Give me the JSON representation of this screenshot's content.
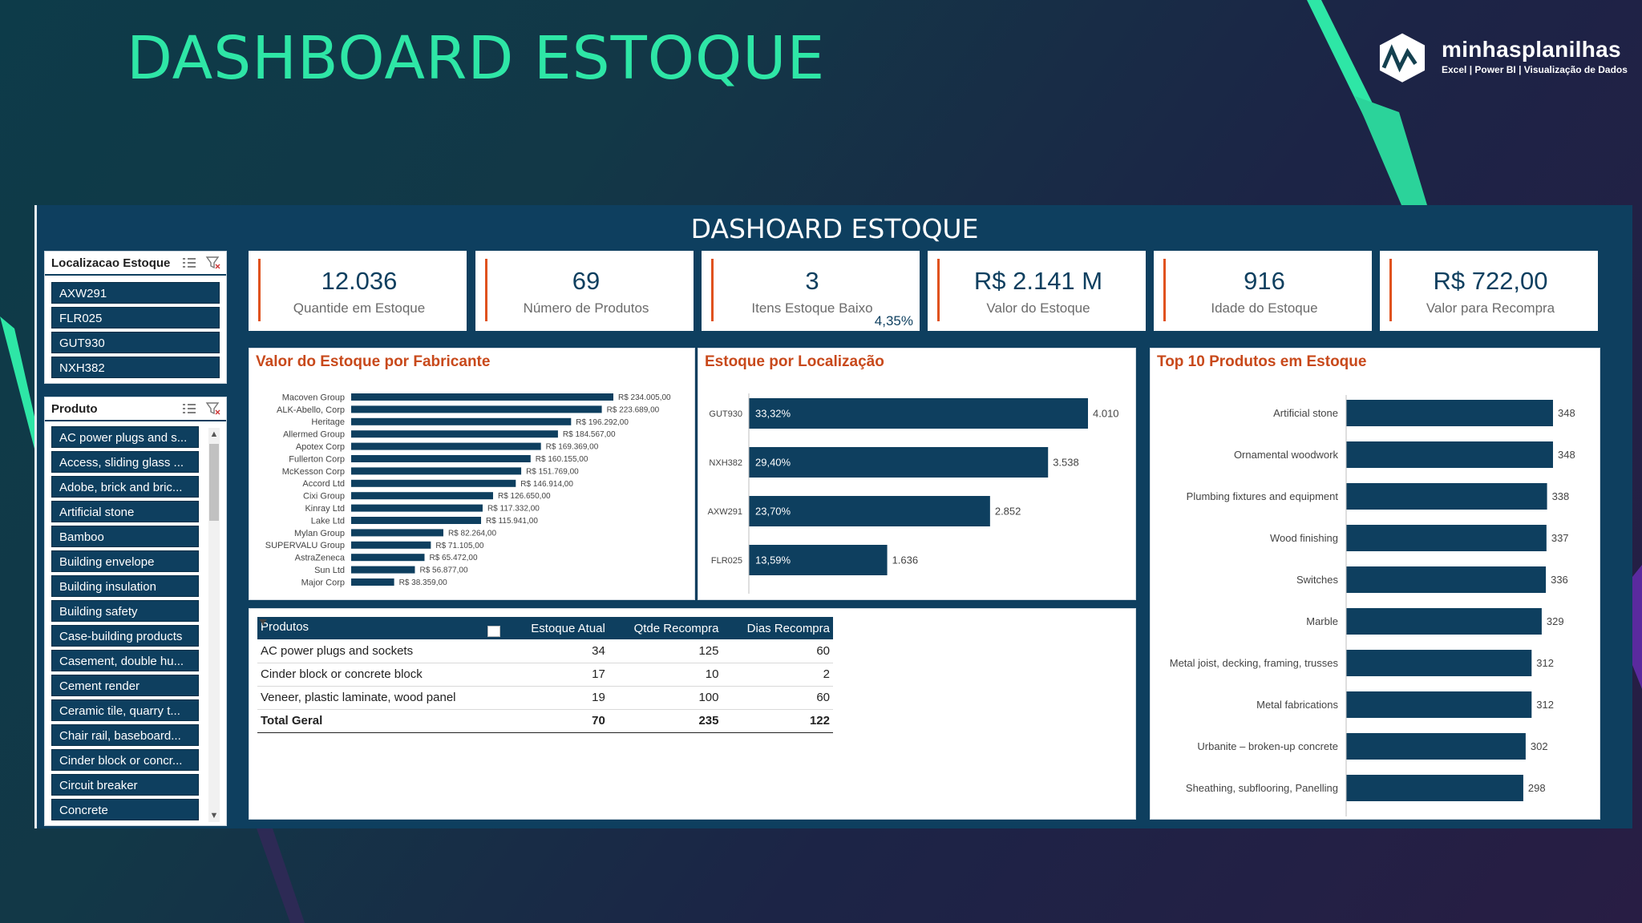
{
  "page_title": "DASHBOARD ESTOQUE",
  "brand": {
    "name": "minhasplanilhas",
    "tagline": "Excel | Power BI | Visualização de Dados"
  },
  "dashboard": {
    "title": "DASHOARD ESTOQUE",
    "slicers": {
      "location": {
        "title": "Localizacao Estoque",
        "items": [
          "AXW291",
          "FLR025",
          "GUT930",
          "NXH382"
        ]
      },
      "product": {
        "title": "Produto",
        "items": [
          "AC power plugs and s...",
          "Access, sliding glass ...",
          "Adobe, brick and bric...",
          "Artificial stone",
          "Bamboo",
          "Building envelope",
          "Building insulation",
          "Building safety",
          "Case-building products",
          "Casement, double hu...",
          "Cement render",
          "Ceramic tile, quarry t...",
          "Chair rail, baseboard...",
          "Cinder block or concr...",
          "Circuit breaker",
          "Concrete"
        ]
      }
    },
    "kpis": [
      {
        "value": "12.036",
        "label": "Quantide em Estoque"
      },
      {
        "value": "69",
        "label": "Número de Produtos"
      },
      {
        "value": "3",
        "label": "Itens Estoque Baixo",
        "extra": "4,35%"
      },
      {
        "value": "R$ 2.141 M",
        "label": "Valor do Estoque"
      },
      {
        "value": "916",
        "label": "Idade do Estoque"
      },
      {
        "value": "R$ 722,00",
        "label": "Valor para Recompra"
      }
    ],
    "table": {
      "headers": [
        "Produtos",
        "Estoque Atual",
        "Qtde Recompra",
        "Dias Recompra"
      ],
      "rows": [
        [
          "AC power plugs and sockets",
          "34",
          "125",
          "60"
        ],
        [
          "Cinder block or concrete block",
          "17",
          "10",
          "2"
        ],
        [
          "Veneer, plastic laminate, wood panel",
          "19",
          "100",
          "60"
        ]
      ],
      "total": [
        "Total Geral",
        "70",
        "235",
        "122"
      ]
    }
  },
  "chart_data": [
    {
      "type": "bar",
      "orientation": "horizontal",
      "title": "Valor do Estoque por Fabricante",
      "categories": [
        "Macoven Group",
        "ALK-Abello, Corp",
        "Heritage",
        "Allermed Group",
        "Apotex Corp",
        "Fullerton Corp",
        "McKesson Corp",
        "Accord Ltd",
        "Cixi Group",
        "Kinray Ltd",
        "Lake Ltd",
        "Mylan Group",
        "SUPERVALU Group",
        "AstraZeneca",
        "Sun Ltd",
        "Major Corp"
      ],
      "values": [
        234005,
        223689,
        196292,
        184567,
        169369,
        160155,
        151769,
        146914,
        126650,
        117332,
        115941,
        82264,
        71105,
        65472,
        56877,
        38359
      ],
      "data_labels": [
        "R$ 234.005,00",
        "R$ 223.689,00",
        "R$ 196.292,00",
        "R$ 184.567,00",
        "R$ 169.369,00",
        "R$ 160.155,00",
        "R$ 151.769,00",
        "R$ 146.914,00",
        "R$ 126.650,00",
        "R$ 117.332,00",
        "R$ 115.941,00",
        "R$ 82.264,00",
        "R$ 71.105,00",
        "R$ 65.472,00",
        "R$ 56.877,00",
        "R$ 38.359,00"
      ],
      "color": "#0e3f5f"
    },
    {
      "type": "bar",
      "orientation": "horizontal",
      "title": "Estoque por Localização",
      "categories": [
        "GUT930",
        "NXH382",
        "AXW291",
        "FLR025"
      ],
      "values": [
        4010,
        3538,
        2852,
        1636
      ],
      "data_labels": [
        "4.010",
        "3.538",
        "2.852",
        "1.636"
      ],
      "inner_labels": [
        "33,32%",
        "29,40%",
        "23,70%",
        "13,59%"
      ],
      "color": "#0e3f5f"
    },
    {
      "type": "bar",
      "orientation": "horizontal",
      "title": "Top 10 Produtos em Estoque",
      "categories": [
        "Artificial stone",
        "Ornamental woodwork",
        "Plumbing fixtures and equipment",
        "Wood finishing",
        "Switches",
        "Marble",
        "Metal joist, decking, framing, trusses",
        "Metal fabrications",
        "Urbanite – broken-up concrete",
        "Sheathing, subflooring, Panelling"
      ],
      "values": [
        348,
        348,
        338,
        337,
        336,
        329,
        312,
        312,
        302,
        298
      ],
      "data_labels": [
        "348",
        "348",
        "338",
        "337",
        "336",
        "329",
        "312",
        "312",
        "302",
        "298"
      ],
      "color": "#0e3f5f"
    }
  ]
}
